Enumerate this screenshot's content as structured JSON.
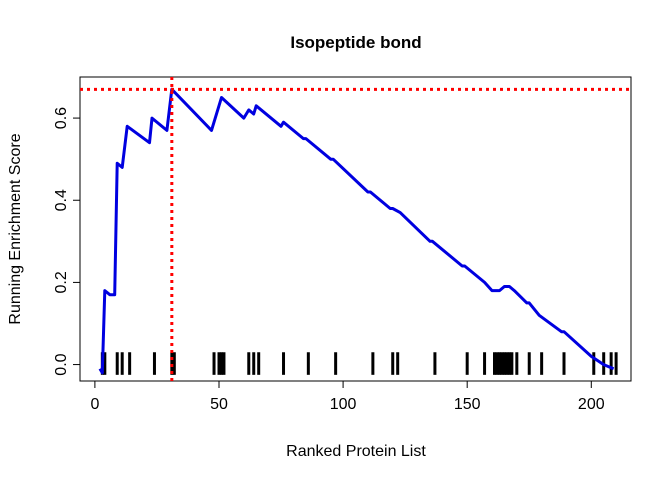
{
  "chart_data": {
    "type": "line",
    "title": "Isopeptide bond",
    "xlabel": "Ranked Protein List",
    "ylabel": "Running Enrichment Score",
    "xlim": [
      -6,
      216
    ],
    "ylim": [
      -0.04,
      0.7
    ],
    "x_ticks": [
      0,
      50,
      100,
      150,
      200
    ],
    "y_ticks": [
      0.0,
      0.2,
      0.4,
      0.6
    ],
    "x_tick_labels": [
      "0",
      "50",
      "100",
      "150",
      "200"
    ],
    "y_tick_labels": [
      "0.0",
      "0.2",
      "0.4",
      "0.6"
    ],
    "grid": false,
    "series": [
      {
        "color": "#0000e0",
        "points": [
          [
            2,
            -0.01
          ],
          [
            3,
            -0.02
          ],
          [
            4,
            0.18
          ],
          [
            6,
            0.17
          ],
          [
            8,
            0.17
          ],
          [
            9,
            0.49
          ],
          [
            11,
            0.48
          ],
          [
            13,
            0.58
          ],
          [
            22,
            0.54
          ],
          [
            23,
            0.6
          ],
          [
            29,
            0.57
          ],
          [
            31,
            0.67
          ],
          [
            47,
            0.57
          ],
          [
            51,
            0.65
          ],
          [
            60,
            0.6
          ],
          [
            62,
            0.62
          ],
          [
            64,
            0.61
          ],
          [
            65,
            0.63
          ],
          [
            75,
            0.58
          ],
          [
            76,
            0.59
          ],
          [
            84,
            0.55
          ],
          [
            85,
            0.55
          ],
          [
            95,
            0.5
          ],
          [
            96,
            0.5
          ],
          [
            110,
            0.42
          ],
          [
            111,
            0.42
          ],
          [
            119,
            0.38
          ],
          [
            120,
            0.38
          ],
          [
            123,
            0.37
          ],
          [
            135,
            0.3
          ],
          [
            136,
            0.3
          ],
          [
            148,
            0.24
          ],
          [
            149,
            0.24
          ],
          [
            157,
            0.2
          ],
          [
            160,
            0.18
          ],
          [
            163,
            0.18
          ],
          [
            165,
            0.19
          ],
          [
            167,
            0.19
          ],
          [
            169,
            0.18
          ],
          [
            174,
            0.15
          ],
          [
            175,
            0.15
          ],
          [
            179,
            0.12
          ],
          [
            188,
            0.08
          ],
          [
            189,
            0.08
          ],
          [
            200,
            0.02
          ],
          [
            205,
            0.0
          ],
          [
            209,
            -0.01
          ]
        ]
      }
    ],
    "hits": [
      3,
      4,
      9,
      11,
      14,
      24,
      31,
      32,
      48,
      50,
      51,
      52,
      62,
      64,
      66,
      76,
      86,
      97,
      112,
      120,
      122,
      137,
      150,
      157,
      161,
      162,
      163,
      164,
      165,
      166,
      167,
      168,
      170,
      175,
      180,
      189,
      201,
      205,
      208,
      210
    ],
    "max_line": {
      "x": 31,
      "y": 0.67,
      "color": "#ff0000"
    }
  }
}
